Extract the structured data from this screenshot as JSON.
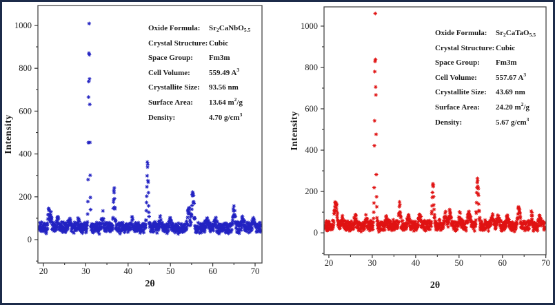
{
  "figure": {
    "border_color": "#1c2b4a",
    "background": "#ffffff"
  },
  "chart_data": [
    {
      "id": "xrd-nb",
      "type": "scatter",
      "marker": "star",
      "color": "#2222c2",
      "title": "",
      "xlabel": "2θ",
      "ylabel": "Intensity",
      "xlim": [
        18.7,
        71.63
      ],
      "ylim": [
        -109,
        1093
      ],
      "xticks": [
        20,
        30,
        40,
        50,
        60,
        70
      ],
      "yticks": [
        0,
        200,
        400,
        600,
        800,
        1000
      ],
      "x_minor_step": 5,
      "y_minor_step": 100,
      "grid": false,
      "legend": null,
      "baseline": {
        "mean": 56,
        "noise_amplitude": 30
      },
      "peaks": [
        {
          "two_theta": 21.3,
          "intensity": 128,
          "width": 0.18
        },
        {
          "two_theta": 21.8,
          "intensity": 118,
          "width": 0.15
        },
        {
          "two_theta": 23.4,
          "intensity": 100,
          "width": 0.2
        },
        {
          "two_theta": 26.2,
          "intensity": 98,
          "width": 0.2
        },
        {
          "two_theta": 28.3,
          "intensity": 95,
          "width": 0.18
        },
        {
          "two_theta": 30.8,
          "intensity": 1010,
          "width": 0.15
        },
        {
          "two_theta": 34.0,
          "intensity": 120,
          "width": 0.18
        },
        {
          "two_theta": 36.7,
          "intensity": 240,
          "width": 0.17
        },
        {
          "two_theta": 41.0,
          "intensity": 92,
          "width": 0.2
        },
        {
          "two_theta": 44.6,
          "intensity": 362,
          "width": 0.18
        },
        {
          "two_theta": 47.6,
          "intensity": 90,
          "width": 0.25
        },
        {
          "two_theta": 50.0,
          "intensity": 88,
          "width": 0.25
        },
        {
          "two_theta": 54.3,
          "intensity": 152,
          "width": 0.22
        },
        {
          "two_theta": 55.3,
          "intensity": 230,
          "width": 0.25
        },
        {
          "two_theta": 58.6,
          "intensity": 92,
          "width": 0.25
        },
        {
          "two_theta": 60.6,
          "intensity": 88,
          "width": 0.25
        },
        {
          "two_theta": 65.0,
          "intensity": 132,
          "width": 0.25
        },
        {
          "two_theta": 67.1,
          "intensity": 100,
          "width": 0.2
        },
        {
          "two_theta": 69.6,
          "intensity": 98,
          "width": 0.2
        }
      ],
      "annotation": {
        "rows": [
          {
            "label": "Oxide Formula:",
            "value": "Sr_{2}CaNbO_{5.5}"
          },
          {
            "label": "Crystal Structure:",
            "value": "Cubic"
          },
          {
            "label": "Space Group:",
            "value": "Fm3m"
          },
          {
            "label": "Cell Volume:",
            "value": "559.49 A^{3}"
          },
          {
            "label": "Crystallite Size:",
            "value": "93.56 nm"
          },
          {
            "label": "Surface Area:",
            "value": "13.64 m^{2}/g"
          },
          {
            "label": "Density:",
            "value": "4.70 g/cm^{3}"
          }
        ]
      }
    },
    {
      "id": "xrd-ta",
      "type": "scatter",
      "marker": "star",
      "color": "#e01212",
      "title": "",
      "xlabel": "2θ",
      "ylabel": "Intensity",
      "xlim": [
        18.89,
        70.05
      ],
      "ylim": [
        -106,
        1093
      ],
      "xticks": [
        20,
        30,
        40,
        50,
        60,
        70
      ],
      "yticks": [
        0,
        200,
        400,
        600,
        800,
        1000
      ],
      "x_minor_step": 5,
      "y_minor_step": 100,
      "grid": false,
      "legend": null,
      "baseline": {
        "mean": 34,
        "noise_amplitude": 30
      },
      "peaks": [
        {
          "two_theta": 21.4,
          "intensity": 138,
          "width": 0.18
        },
        {
          "two_theta": 21.8,
          "intensity": 125,
          "width": 0.15
        },
        {
          "two_theta": 23.1,
          "intensity": 72,
          "width": 0.2
        },
        {
          "two_theta": 26.1,
          "intensity": 70,
          "width": 0.2
        },
        {
          "two_theta": 28.7,
          "intensity": 78,
          "width": 0.18
        },
        {
          "two_theta": 30.7,
          "intensity": 1005,
          "width": 0.15
        },
        {
          "two_theta": 33.3,
          "intensity": 72,
          "width": 0.2
        },
        {
          "two_theta": 36.3,
          "intensity": 132,
          "width": 0.18
        },
        {
          "two_theta": 38.3,
          "intensity": 76,
          "width": 0.2
        },
        {
          "two_theta": 40.9,
          "intensity": 82,
          "width": 0.2
        },
        {
          "two_theta": 44.0,
          "intensity": 232,
          "width": 0.18
        },
        {
          "two_theta": 46.9,
          "intensity": 85,
          "width": 0.25
        },
        {
          "two_theta": 47.9,
          "intensity": 92,
          "width": 0.25
        },
        {
          "two_theta": 50.2,
          "intensity": 85,
          "width": 0.25
        },
        {
          "two_theta": 52.3,
          "intensity": 98,
          "width": 0.25
        },
        {
          "two_theta": 54.3,
          "intensity": 258,
          "width": 0.22
        },
        {
          "two_theta": 57.6,
          "intensity": 80,
          "width": 0.3
        },
        {
          "two_theta": 59.1,
          "intensity": 76,
          "width": 0.25
        },
        {
          "two_theta": 61.2,
          "intensity": 74,
          "width": 0.25
        },
        {
          "two_theta": 63.8,
          "intensity": 118,
          "width": 0.25
        },
        {
          "two_theta": 66.7,
          "intensity": 76,
          "width": 0.2
        },
        {
          "two_theta": 68.7,
          "intensity": 82,
          "width": 0.2
        }
      ],
      "annotation": {
        "rows": [
          {
            "label": "Oxide Formula:",
            "value": "Sr_{2}CaTaO_{5.5}"
          },
          {
            "label": "Crystal Structure:",
            "value": "Cubic"
          },
          {
            "label": "Space Group:",
            "value": "Fm3m"
          },
          {
            "label": "Cell Volume:",
            "value": "557.67 A^{3}"
          },
          {
            "label": "Crystallite Size:",
            "value": "43.69 nm"
          },
          {
            "label": "Surface Area:",
            "value": "24.20 m^{2}/g"
          },
          {
            "label": "Density:",
            "value": "5.67 g/cm^{3}"
          }
        ]
      }
    }
  ]
}
